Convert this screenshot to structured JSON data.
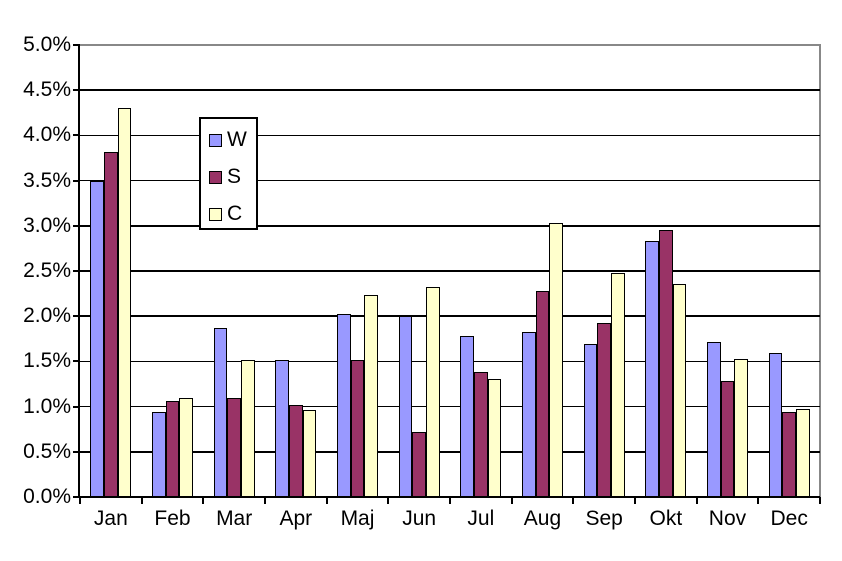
{
  "chart": {
    "background_color": "#FFFFFF",
    "gridline_color": "#000000",
    "axis_color": "#000000",
    "plot_border_color": "#888888"
  },
  "chart_data": {
    "type": "bar",
    "title": "",
    "xlabel": "",
    "ylabel": "",
    "categories": [
      "Jan",
      "Feb",
      "Mar",
      "Apr",
      "Maj",
      "Jun",
      "Jul",
      "Aug",
      "Sep",
      "Okt",
      "Nov",
      "Dec"
    ],
    "series": [
      {
        "name": "W",
        "color": "#9999FF",
        "values": [
          3.5,
          0.94,
          1.87,
          1.52,
          2.02,
          2.0,
          1.78,
          1.82,
          1.69,
          2.83,
          1.72,
          1.59
        ]
      },
      {
        "name": "S",
        "color": "#993366",
        "values": [
          3.82,
          1.06,
          1.09,
          1.02,
          1.51,
          0.72,
          1.38,
          2.28,
          1.93,
          2.95,
          1.28,
          0.94
        ]
      },
      {
        "name": "C",
        "color": "#FFFFCC",
        "values": [
          4.3,
          1.09,
          1.52,
          0.96,
          2.23,
          2.32,
          1.3,
          3.03,
          2.48,
          2.36,
          1.53,
          0.97
        ]
      }
    ],
    "ylim": [
      0,
      5
    ],
    "ytick_step": 0.5,
    "ytick_labels": [
      "0.0%",
      "0.5%",
      "1.0%",
      "1.5%",
      "2.0%",
      "2.5%",
      "3.0%",
      "3.5%",
      "4.0%",
      "4.5%",
      "5.0%"
    ],
    "grid": "horizontal",
    "legend": {
      "position": "inside-upper-left",
      "entries": [
        "W",
        "S",
        "C"
      ]
    }
  }
}
